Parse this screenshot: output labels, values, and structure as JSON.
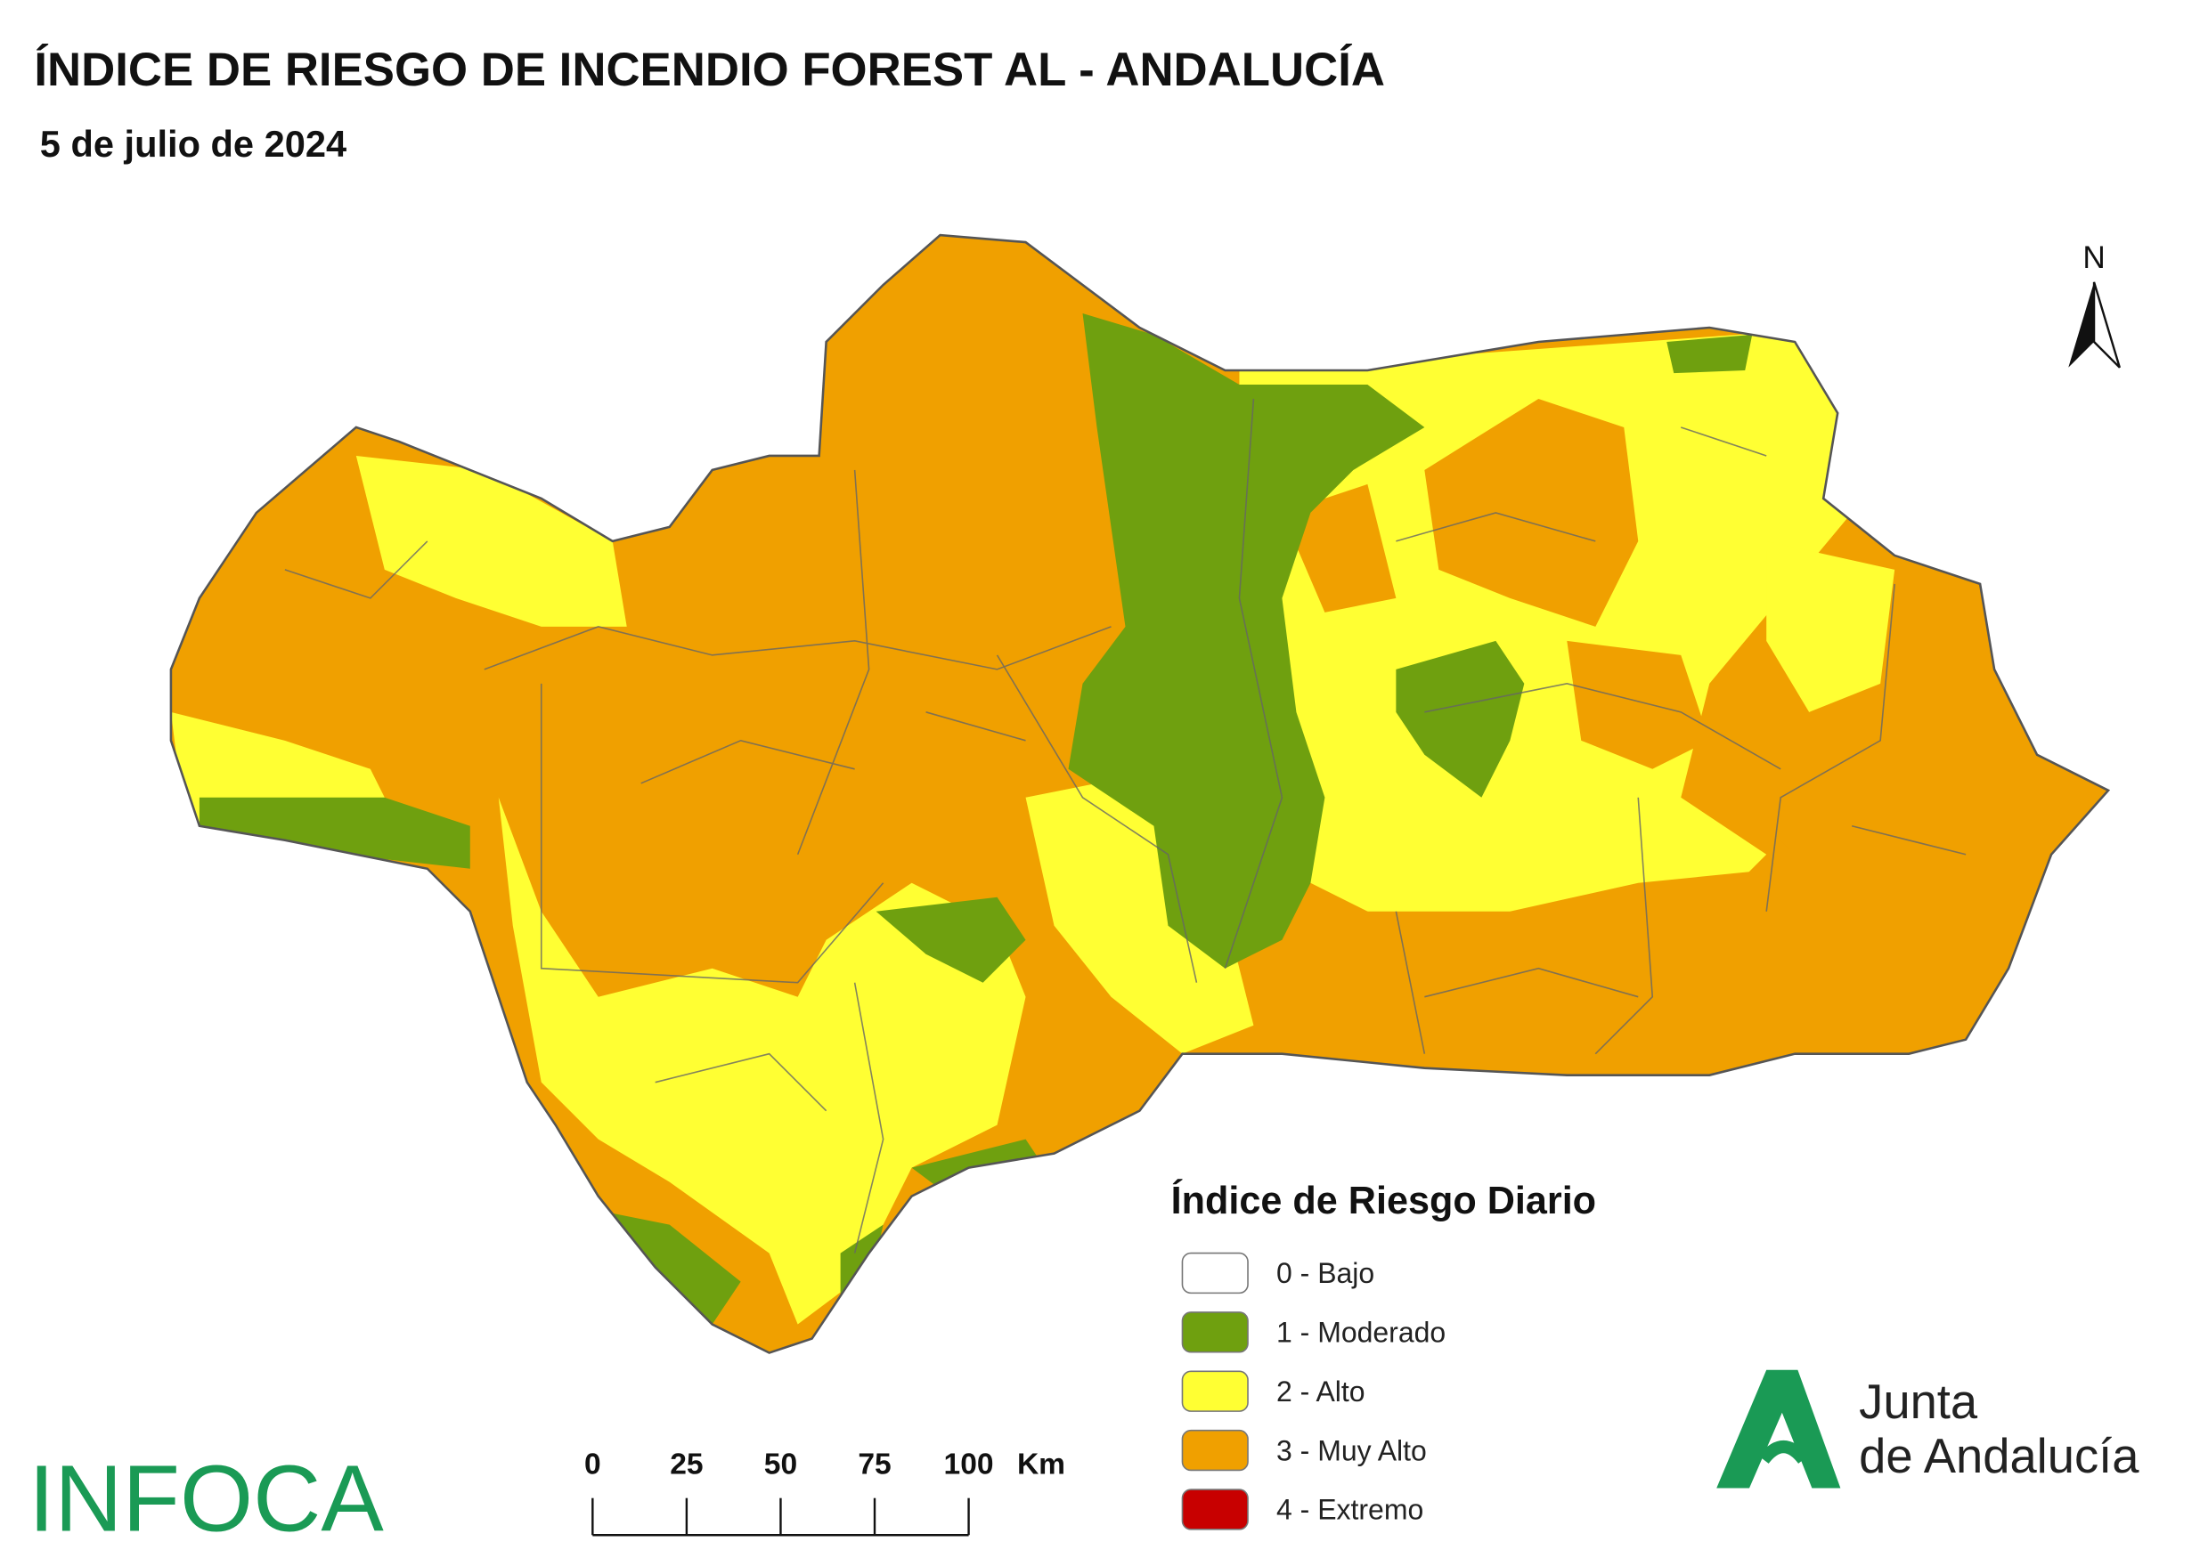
{
  "header": {
    "title": "ÍNDICE DE RIESGO DE INCENDIO FOREST AL - ANDALUCÍA",
    "subtitle": "5 de julio de 2024"
  },
  "legend": {
    "title": "Índice de Riesgo Diario",
    "items": [
      {
        "label": "0 - Bajo",
        "color": "#ffffff"
      },
      {
        "label": "1 - Moderado",
        "color": "#6fa00f"
      },
      {
        "label": "2 - Alto",
        "color": "#ffff33"
      },
      {
        "label": "3 - Muy Alto",
        "color": "#f0a000"
      },
      {
        "label": "4 - Extremo",
        "color": "#c80000"
      }
    ]
  },
  "scale_bar": {
    "ticks": [
      0,
      25,
      50,
      75,
      100
    ],
    "unit": "Km"
  },
  "north_arrow": "N",
  "logos": {
    "infoca": "INFOCA",
    "junta": [
      "Junta",
      "de Andalucía"
    ]
  }
}
